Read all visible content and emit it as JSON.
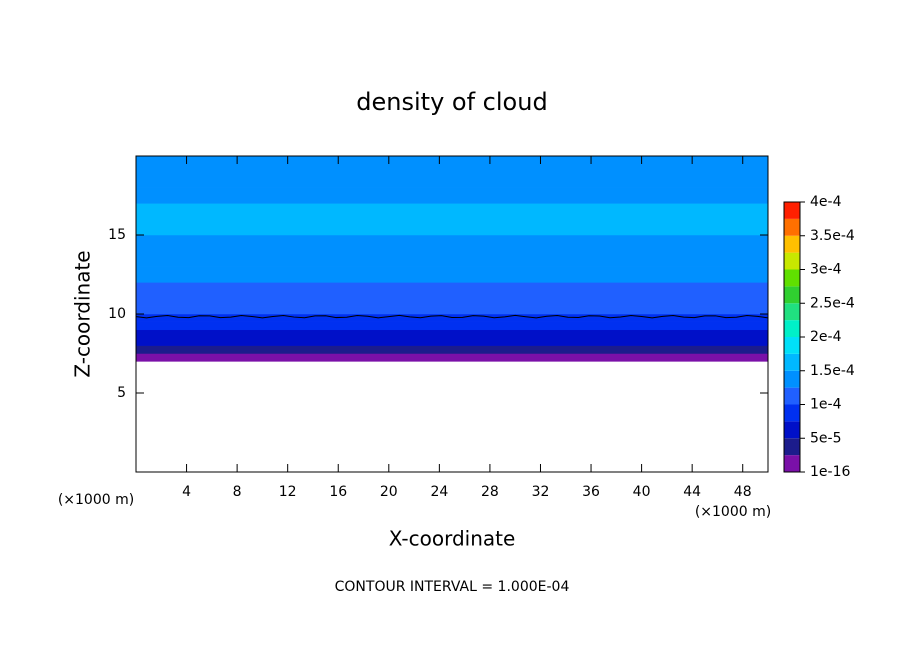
{
  "chart_data": {
    "type": "contour",
    "title": "density of cloud",
    "xlabel": "X-coordinate",
    "ylabel": "Z-coordinate",
    "xunit": "(×1000 m)",
    "yunit": "(×1000 m)",
    "footer": "CONTOUR INTERVAL = 1.000E-04",
    "xlim": [
      0,
      50
    ],
    "ylim": [
      0,
      20
    ],
    "xticks": [
      4,
      8,
      12,
      16,
      20,
      24,
      28,
      32,
      36,
      40,
      44,
      48
    ],
    "yticks": [
      5,
      10,
      15
    ],
    "profile": {
      "z": [
        7,
        7.5,
        8,
        8.5,
        9,
        9.5,
        10,
        10.5,
        11,
        12,
        13,
        14,
        15,
        16,
        17,
        18,
        19,
        20
      ],
      "values": [
        1e-05,
        3e-05,
        6e-05,
        7e-05,
        8e-05,
        9e-05,
        0.000105,
        0.00011,
        0.00012,
        0.00013,
        0.00014,
        0.00015,
        0.00016,
        0.00016,
        0.00015,
        0.00014,
        0.00013,
        0.00012
      ]
    },
    "contour_level": 0.0001,
    "colorbar": {
      "lim": [
        1e-16,
        0.0004
      ],
      "colors": [
        "#7a10a8",
        "#1c1c8c",
        "#0010c8",
        "#0030f0",
        "#2060ff",
        "#0090ff",
        "#00b8ff",
        "#00e0f8",
        "#00f0c8",
        "#20e080",
        "#30d030",
        "#60e000",
        "#c8e800",
        "#ffc000",
        "#ff7000",
        "#ff2000"
      ],
      "ticks": [
        {
          "value": 1e-16,
          "label": "1e-16"
        },
        {
          "value": 5e-05,
          "label": "5e-5"
        },
        {
          "value": 0.0001,
          "label": "1e-4"
        },
        {
          "value": 0.00015,
          "label": "1.5e-4"
        },
        {
          "value": 0.0002,
          "label": "2e-4"
        },
        {
          "value": 0.00025,
          "label": "2.5e-4"
        },
        {
          "value": 0.0003,
          "label": "3e-4"
        },
        {
          "value": 0.00035,
          "label": "3.5e-4"
        },
        {
          "value": 0.0004,
          "label": "4e-4"
        }
      ]
    }
  }
}
